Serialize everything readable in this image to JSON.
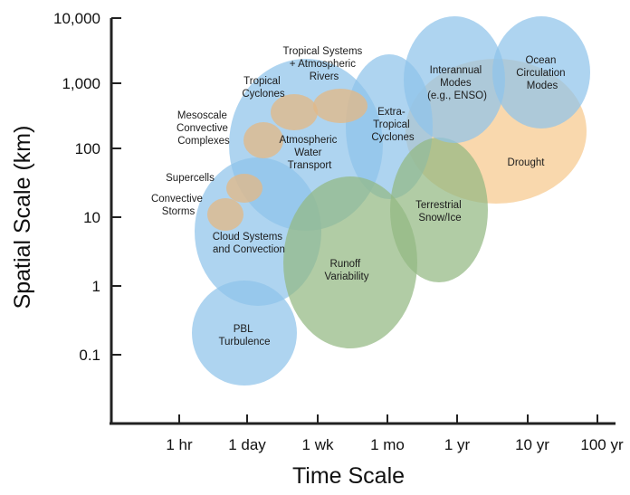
{
  "diagram": {
    "x_axis_title": "Time Scale",
    "y_axis_title": "Spatial Scale (km)",
    "x_ticks": [
      "1 hr",
      "1 day",
      "1 wk",
      "1 mo",
      "1 yr",
      "10 yr",
      "100 yr"
    ],
    "y_ticks": [
      "10,000",
      "1,000",
      "100",
      "10",
      "1",
      "0.1"
    ],
    "colors": {
      "blue": "#8fc4ea",
      "orange": "#f6c98e",
      "green": "#93b882",
      "tan": "#e2b988",
      "axis": "#222222"
    },
    "phenomena": [
      {
        "id": "pbl",
        "lines": [
          "PBL",
          "Turbulence"
        ],
        "color": "blue"
      },
      {
        "id": "cloud",
        "lines": [
          "Cloud Systems",
          "and Convection"
        ],
        "color": "blue"
      },
      {
        "id": "atmos",
        "lines": [
          "Atmospheric",
          "Water",
          "Transport"
        ],
        "color": "blue"
      },
      {
        "id": "runoff",
        "lines": [
          "Runoff",
          "Variability"
        ],
        "color": "green"
      },
      {
        "id": "drought",
        "lines": [
          "Drought"
        ],
        "color": "orange"
      },
      {
        "id": "extratrop",
        "lines": [
          "Extra-",
          "Tropical",
          "Cyclones"
        ],
        "color": "blue"
      },
      {
        "id": "snow",
        "lines": [
          "Terrestrial",
          "Snow/Ice"
        ],
        "color": "green"
      },
      {
        "id": "enso",
        "lines": [
          "Interannual",
          "Modes",
          "(e.g., ENSO)"
        ],
        "color": "blue"
      },
      {
        "id": "ocean",
        "lines": [
          "Ocean",
          "Circulation",
          "Modes"
        ],
        "color": "blue"
      },
      {
        "id": "convstorm",
        "lines": [
          "Convective",
          "Storms"
        ],
        "color": "tan"
      },
      {
        "id": "supercell",
        "lines": [
          "Supercells"
        ],
        "color": "tan"
      },
      {
        "id": "mcc",
        "lines": [
          "Mesoscale",
          "Convective",
          "Complexes"
        ],
        "color": "tan"
      },
      {
        "id": "tropcyc",
        "lines": [
          "Tropical",
          "Cyclones"
        ],
        "color": "tan"
      },
      {
        "id": "tropsys",
        "lines": [
          "Tropical Systems",
          "+ Atmospheric",
          "Rivers"
        ],
        "color": "tan"
      }
    ]
  }
}
